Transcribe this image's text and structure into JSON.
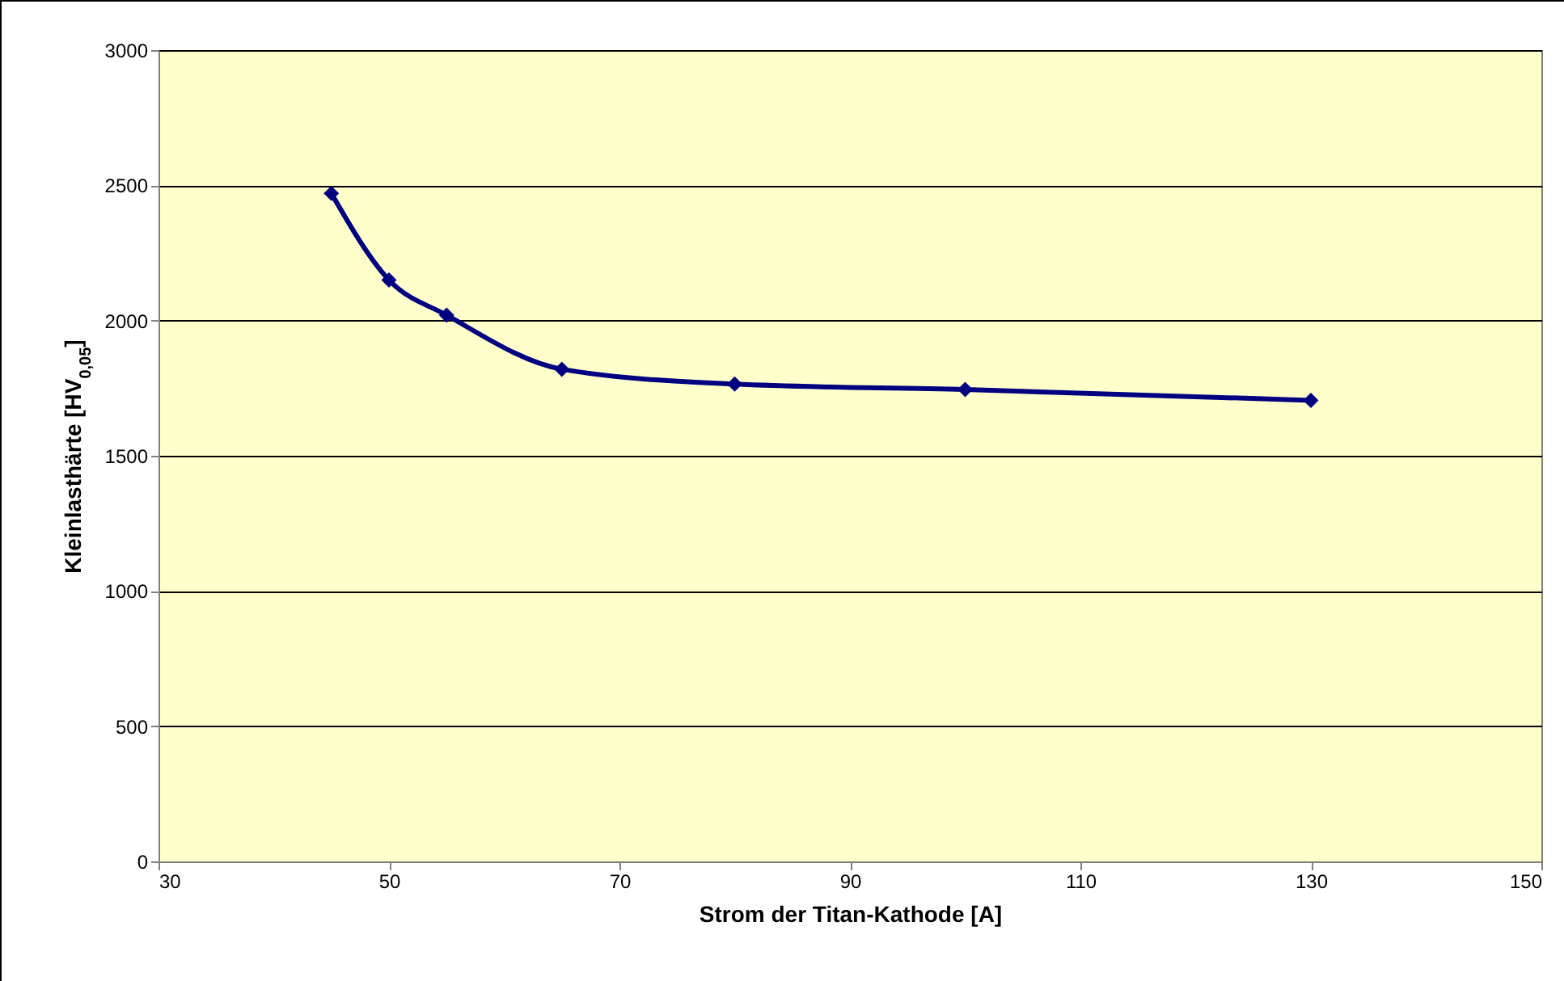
{
  "chart_data": {
    "type": "line",
    "xlabel": "Strom der Titan-Kathode [A]",
    "ylabel": "Kleinlasthärte [HV$_{0,05}$]",
    "x": [
      45,
      50,
      55,
      65,
      80,
      100,
      130
    ],
    "series": [
      {
        "color": "#000080",
        "values": [
          2470,
          2150,
          2020,
          1820,
          1765,
          1745,
          1705
        ]
      }
    ],
    "xlim": [
      30,
      150
    ],
    "xticks": [
      30,
      50,
      70,
      90,
      110,
      130,
      150
    ],
    "ylim": [
      0,
      3000
    ],
    "yticks": [
      0,
      500,
      1000,
      1500,
      2000,
      2500,
      3000
    ],
    "grid": "y",
    "marker": "diamond",
    "line_style": "solid",
    "legend": false
  }
}
